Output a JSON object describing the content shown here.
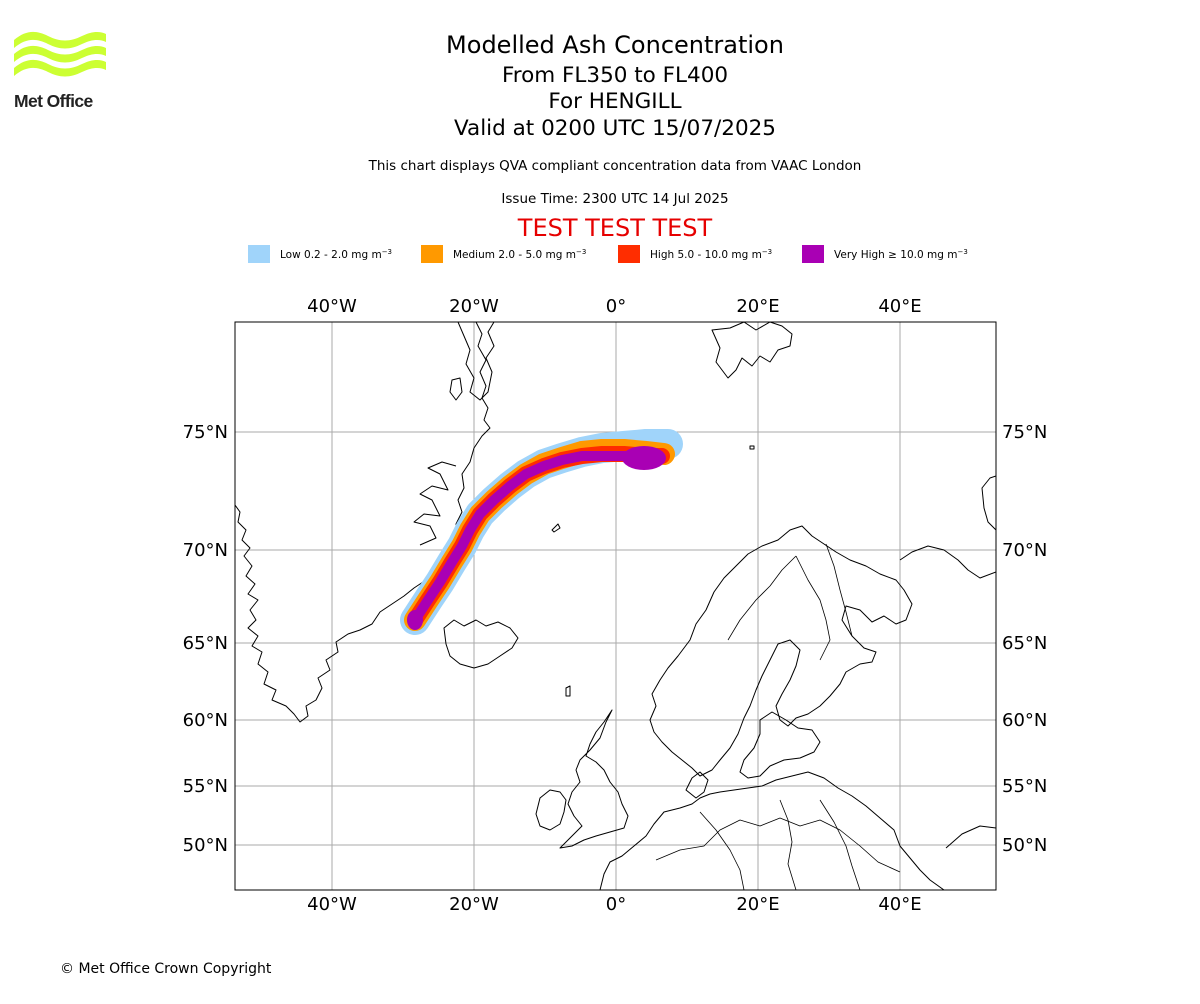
{
  "logo": {
    "text": "Met Office",
    "color": "#ccff33"
  },
  "header": {
    "title": "Modelled Ash Concentration",
    "levels": "From FL350 to FL400",
    "volcano": "For HENGILL",
    "valid": "Valid at 0200 UTC 15/07/2025",
    "compliance": "This chart displays QVA compliant concentration data from VAAC London",
    "issue_time": "Issue Time: 2300 UTC 14 Jul 2025",
    "test_banner": "TEST TEST TEST"
  },
  "legend": {
    "items": [
      {
        "label": "Low 0.2 - 2.0 mg m",
        "color": "#a0d4fa"
      },
      {
        "label": "Medium 2.0 - 5.0 mg m",
        "color": "#ff9900"
      },
      {
        "label": "High 5.0 - 10.0 mg m",
        "color": "#ff2d00"
      },
      {
        "label": "Very High ≥ 10.0 mg m",
        "color": "#a900b4"
      }
    ],
    "unit_exponent": "−3"
  },
  "map": {
    "lon_labels": [
      "40°W",
      "20°W",
      "0°",
      "20°E",
      "40°E"
    ],
    "lon_values": [
      -40,
      -20,
      0,
      20,
      40
    ],
    "lat_labels": [
      "75°N",
      "70°N",
      "65°N",
      "60°N",
      "55°N",
      "50°N"
    ],
    "lat_values": [
      75,
      70,
      65,
      60,
      55,
      50
    ],
    "grid_color": "#aaaaaa"
  },
  "footer": {
    "copyright": "© Met Office Crown Copyright"
  }
}
